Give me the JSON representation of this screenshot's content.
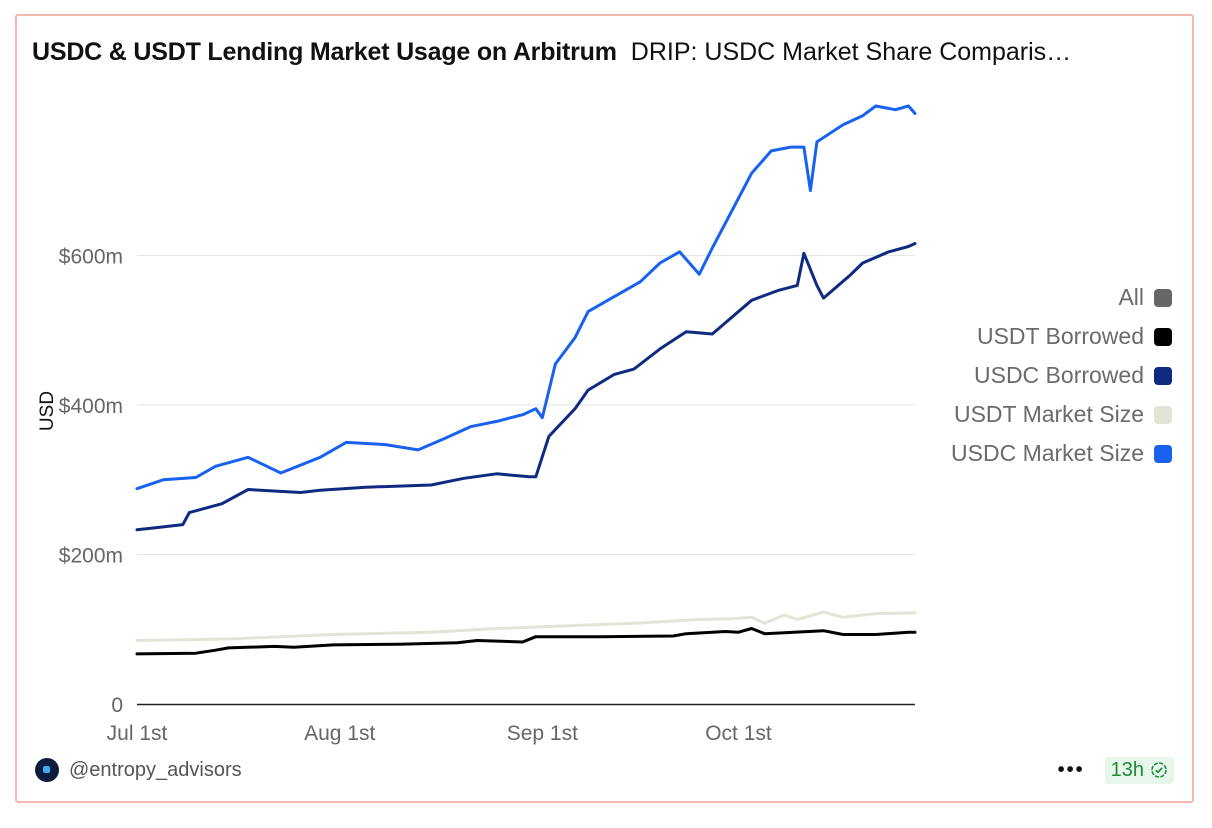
{
  "header": {
    "title": "USDC & USDT Lending Market Usage on Arbitrum",
    "subtitle": "DRIP: USDC Market Share Comparis…"
  },
  "legend": {
    "items": [
      {
        "label": "All",
        "color": "#666666"
      },
      {
        "label": "USDT Borrowed",
        "color": "#000000"
      },
      {
        "label": "USDC Borrowed",
        "color": "#0f2a80"
      },
      {
        "label": "USDT Market Size",
        "color": "#e3e4d6"
      },
      {
        "label": "USDC Market Size",
        "color": "#1862ef"
      }
    ]
  },
  "footer": {
    "handle": "@entropy_advisors",
    "more": "•••",
    "age": "13h"
  },
  "chart_data": {
    "type": "line",
    "ylabel": "USD",
    "ylim": [
      0,
      800
    ],
    "yticks": [
      {
        "value": 0,
        "label": "0"
      },
      {
        "value": 200,
        "label": "$200m"
      },
      {
        "value": 400,
        "label": "$400m"
      },
      {
        "value": 600,
        "label": "$600m"
      }
    ],
    "xlim": [
      "2023-07-01",
      "2023-10-28"
    ],
    "xticks": [
      {
        "value": "2023-07-01",
        "label": "Jul 1st"
      },
      {
        "value": "2023-08-01",
        "label": "Aug 1st"
      },
      {
        "value": "2023-09-01",
        "label": "Sep 1st"
      },
      {
        "value": "2023-10-01",
        "label": "Oct 1st"
      }
    ],
    "grid": true,
    "series": [
      {
        "name": "USDT Borrowed",
        "color": "#000000",
        "points": [
          [
            "2023-07-01",
            67
          ],
          [
            "2023-07-10",
            68
          ],
          [
            "2023-07-13",
            72
          ],
          [
            "2023-07-15",
            75
          ],
          [
            "2023-07-22",
            77
          ],
          [
            "2023-07-25",
            76
          ],
          [
            "2023-07-31",
            79
          ],
          [
            "2023-08-10",
            80
          ],
          [
            "2023-08-19",
            82
          ],
          [
            "2023-08-22",
            85
          ],
          [
            "2023-08-29",
            83
          ],
          [
            "2023-08-31",
            90
          ],
          [
            "2023-09-10",
            90
          ],
          [
            "2023-09-21",
            91
          ],
          [
            "2023-09-23",
            94
          ],
          [
            "2023-09-29",
            97
          ],
          [
            "2023-10-01",
            96
          ],
          [
            "2023-10-03",
            101
          ],
          [
            "2023-10-05",
            94
          ],
          [
            "2023-10-14",
            98
          ],
          [
            "2023-10-17",
            93
          ],
          [
            "2023-10-22",
            93
          ],
          [
            "2023-10-27",
            96
          ],
          [
            "2023-10-28",
            96
          ]
        ]
      },
      {
        "name": "USDT Market Size",
        "color": "#e3e4d6",
        "points": [
          [
            "2023-07-01",
            85
          ],
          [
            "2023-07-15",
            87
          ],
          [
            "2023-07-31",
            93
          ],
          [
            "2023-08-15",
            96
          ],
          [
            "2023-08-25",
            101
          ],
          [
            "2023-08-31",
            103
          ],
          [
            "2023-09-15",
            108
          ],
          [
            "2023-09-25",
            113
          ],
          [
            "2023-09-30",
            114
          ],
          [
            "2023-10-03",
            116
          ],
          [
            "2023-10-05",
            108
          ],
          [
            "2023-10-08",
            119
          ],
          [
            "2023-10-10",
            113
          ],
          [
            "2023-10-14",
            123
          ],
          [
            "2023-10-17",
            116
          ],
          [
            "2023-10-22",
            121
          ],
          [
            "2023-10-28",
            122
          ]
        ]
      },
      {
        "name": "USDC Borrowed",
        "color": "#0f2a80",
        "points": [
          [
            "2023-07-01",
            233
          ],
          [
            "2023-07-04",
            236
          ],
          [
            "2023-07-08",
            240
          ],
          [
            "2023-07-09",
            256
          ],
          [
            "2023-07-14",
            268
          ],
          [
            "2023-07-18",
            287
          ],
          [
            "2023-07-26",
            283
          ],
          [
            "2023-07-29",
            286
          ],
          [
            "2023-08-05",
            290
          ],
          [
            "2023-08-15",
            293
          ],
          [
            "2023-08-20",
            302
          ],
          [
            "2023-08-25",
            308
          ],
          [
            "2023-08-30",
            304
          ],
          [
            "2023-08-31",
            304
          ],
          [
            "2023-09-02",
            358
          ],
          [
            "2023-09-06",
            395
          ],
          [
            "2023-09-08",
            420
          ],
          [
            "2023-09-12",
            441
          ],
          [
            "2023-09-15",
            448
          ],
          [
            "2023-09-19",
            475
          ],
          [
            "2023-09-23",
            498
          ],
          [
            "2023-09-27",
            495
          ],
          [
            "2023-10-03",
            540
          ],
          [
            "2023-10-07",
            553
          ],
          [
            "2023-10-10",
            560
          ],
          [
            "2023-10-11",
            603
          ],
          [
            "2023-10-13",
            560
          ],
          [
            "2023-10-14",
            543
          ],
          [
            "2023-10-18",
            573
          ],
          [
            "2023-10-20",
            590
          ],
          [
            "2023-10-24",
            605
          ],
          [
            "2023-10-27",
            612
          ],
          [
            "2023-10-28",
            616
          ]
        ]
      },
      {
        "name": "USDC Market Size",
        "color": "#1862ef",
        "points": [
          [
            "2023-07-01",
            288
          ],
          [
            "2023-07-05",
            300
          ],
          [
            "2023-07-10",
            303
          ],
          [
            "2023-07-13",
            318
          ],
          [
            "2023-07-18",
            330
          ],
          [
            "2023-07-23",
            309
          ],
          [
            "2023-07-29",
            330
          ],
          [
            "2023-08-02",
            350
          ],
          [
            "2023-08-08",
            347
          ],
          [
            "2023-08-13",
            340
          ],
          [
            "2023-08-17",
            355
          ],
          [
            "2023-08-21",
            371
          ],
          [
            "2023-08-25",
            378
          ],
          [
            "2023-08-29",
            387
          ],
          [
            "2023-08-31",
            395
          ],
          [
            "2023-09-01",
            383
          ],
          [
            "2023-09-03",
            455
          ],
          [
            "2023-09-06",
            490
          ],
          [
            "2023-09-08",
            525
          ],
          [
            "2023-09-12",
            545
          ],
          [
            "2023-09-16",
            565
          ],
          [
            "2023-09-19",
            590
          ],
          [
            "2023-09-22",
            605
          ],
          [
            "2023-09-25",
            575
          ],
          [
            "2023-09-27",
            610
          ],
          [
            "2023-10-03",
            710
          ],
          [
            "2023-10-06",
            740
          ],
          [
            "2023-10-09",
            745
          ],
          [
            "2023-10-11",
            745
          ],
          [
            "2023-10-12",
            687
          ],
          [
            "2023-10-13",
            752
          ],
          [
            "2023-10-17",
            775
          ],
          [
            "2023-10-20",
            787
          ],
          [
            "2023-10-22",
            800
          ],
          [
            "2023-10-25",
            795
          ],
          [
            "2023-10-27",
            800
          ],
          [
            "2023-10-28",
            790
          ]
        ]
      }
    ]
  }
}
